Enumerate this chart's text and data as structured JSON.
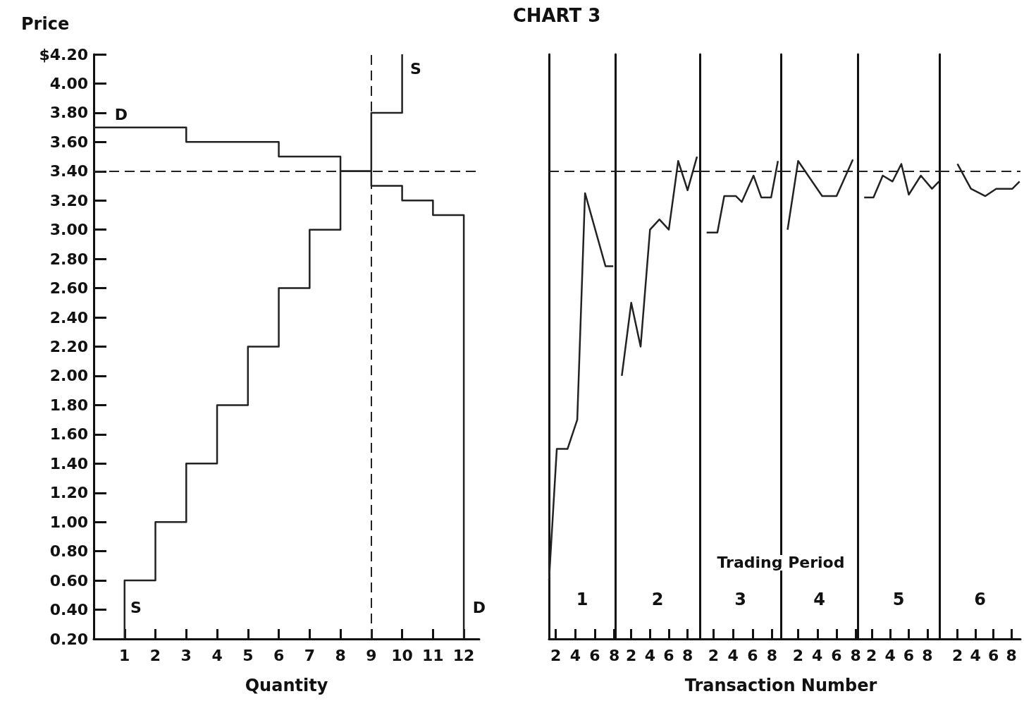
{
  "chart_data": [
    {
      "type": "step",
      "xlabel": "Quantity",
      "ylabel": "Price",
      "xlim": [
        0,
        12.5
      ],
      "xticks": [
        1,
        2,
        3,
        4,
        5,
        6,
        7,
        8,
        9,
        10,
        11,
        12
      ],
      "ylim": [
        0.2,
        4.2
      ],
      "yticks": [
        {
          "value": 0.2,
          "label": "0.20"
        },
        {
          "value": 0.4,
          "label": "0.40"
        },
        {
          "value": 0.6,
          "label": "0.60"
        },
        {
          "value": 0.8,
          "label": "0.80"
        },
        {
          "value": 1.0,
          "label": "1.00"
        },
        {
          "value": 1.2,
          "label": "1.20"
        },
        {
          "value": 1.4,
          "label": "1.40"
        },
        {
          "value": 1.6,
          "label": "1.60"
        },
        {
          "value": 1.8,
          "label": "1.80"
        },
        {
          "value": 2.0,
          "label": "2.00"
        },
        {
          "value": 2.2,
          "label": "2.20"
        },
        {
          "value": 2.4,
          "label": "2.40"
        },
        {
          "value": 2.6,
          "label": "2.60"
        },
        {
          "value": 2.8,
          "label": "2.80"
        },
        {
          "value": 3.0,
          "label": "3.00"
        },
        {
          "value": 3.2,
          "label": "3.20"
        },
        {
          "value": 3.4,
          "label": "3.40"
        },
        {
          "value": 3.6,
          "label": "3.60"
        },
        {
          "value": 3.8,
          "label": "3.80"
        },
        {
          "value": 4.0,
          "label": "4.00"
        },
        {
          "value": 4.2,
          "label": "$4.20"
        }
      ],
      "series": [
        {
          "color": "#222222",
          "x": [
            1,
            2,
            3,
            4,
            5,
            6,
            7,
            8,
            9,
            10,
            10
          ],
          "values": [
            0.2,
            0.6,
            1.0,
            1.4,
            1.8,
            2.2,
            2.6,
            3.0,
            3.4,
            3.8,
            4.2
          ]
        },
        {
          "color": "#222222",
          "x": [
            0,
            3,
            6,
            8,
            9,
            10,
            11,
            12,
            12
          ],
          "values": [
            3.7,
            3.7,
            3.6,
            3.5,
            3.4,
            3.3,
            3.2,
            3.1,
            0.2
          ]
        }
      ],
      "ref_lines": [
        {
          "axis": "y",
          "value": 3.4,
          "line_style": "dashed",
          "color": "#222222"
        },
        {
          "axis": "x",
          "value": 9,
          "line_style": "dashed",
          "color": "#222222"
        }
      ],
      "annotations": [
        "D",
        "S",
        "S",
        "D"
      ],
      "marker": "none",
      "line_style": "solid"
    },
    {
      "type": "line",
      "title": "CHART 3",
      "tick_labels": "x",
      "xlim": [
        1.3,
        8.1
      ],
      "xticks": [
        2,
        4,
        6,
        8
      ],
      "ylim": [
        0.2,
        4.2
      ],
      "series": [
        {
          "color": "#222222",
          "x": [
            1.3,
            2.1,
            3.2,
            4.2,
            5.0,
            7.1,
            7.9
          ],
          "values": [
            0.6,
            1.5,
            1.5,
            1.7,
            3.25,
            2.75,
            2.75
          ]
        }
      ],
      "ref_lines": [
        {
          "axis": "y",
          "value": 3.4,
          "line_style": "dashed",
          "color": "#222222"
        }
      ],
      "annotations": [
        "1"
      ],
      "marker": "none",
      "line_style": "solid"
    },
    {
      "type": "line",
      "tick_labels": "x",
      "xlim": [
        0.3,
        9.3
      ],
      "xticks": [
        2,
        4,
        6,
        8
      ],
      "ylim": [
        0.2,
        4.2
      ],
      "series": [
        {
          "color": "#222222",
          "x": [
            1,
            2,
            3,
            4,
            5,
            6,
            7,
            8,
            9
          ],
          "values": [
            2.0,
            2.5,
            2.2,
            3.0,
            3.07,
            3.0,
            3.47,
            3.27,
            3.5
          ]
        }
      ],
      "ref_lines": [
        {
          "axis": "y",
          "value": 3.4,
          "line_style": "dashed",
          "color": "#222222"
        }
      ],
      "annotations": [
        "2"
      ],
      "marker": "none",
      "line_style": "solid"
    },
    {
      "type": "line",
      "tick_labels": "x",
      "xlabel": "Transaction Number",
      "xlim": [
        0.6,
        8.9
      ],
      "xticks": [
        2,
        4,
        6,
        8
      ],
      "ylim": [
        0.2,
        4.2
      ],
      "series": [
        {
          "color": "#222222",
          "x": [
            1.3,
            2.4,
            3.1,
            4.3,
            4.9,
            6.1,
            6.9,
            7.9,
            8.6
          ],
          "values": [
            2.98,
            2.98,
            3.23,
            3.23,
            3.19,
            3.37,
            3.22,
            3.22,
            3.47
          ]
        }
      ],
      "ref_lines": [
        {
          "axis": "y",
          "value": 3.4,
          "line_style": "dashed",
          "color": "#222222"
        }
      ],
      "annotations": [
        "Trading Period",
        "3"
      ],
      "marker": "none",
      "line_style": "solid"
    },
    {
      "type": "line",
      "tick_labels": "x",
      "xlim": [
        0.2,
        8.2
      ],
      "xticks": [
        2,
        4,
        6,
        8
      ],
      "ylim": [
        0.2,
        4.2
      ],
      "series": [
        {
          "color": "#222222",
          "x": [
            0.9,
            2.0,
            4.5,
            6.0,
            7.7
          ],
          "values": [
            3.0,
            3.47,
            3.23,
            3.23,
            3.48
          ]
        }
      ],
      "ref_lines": [
        {
          "axis": "y",
          "value": 3.4,
          "line_style": "dashed",
          "color": "#222222"
        }
      ],
      "annotations": [
        "4"
      ],
      "marker": "none",
      "line_style": "solid"
    },
    {
      "type": "line",
      "tick_labels": "x",
      "xlim": [
        0.5,
        9.3
      ],
      "xticks": [
        2,
        4,
        6,
        8
      ],
      "ylim": [
        0.2,
        4.2
      ],
      "series": [
        {
          "color": "#222222",
          "x": [
            1.2,
            2.2,
            3.2,
            4.25,
            5.2,
            6.0,
            7.3,
            8.5,
            9.25
          ],
          "values": [
            3.22,
            3.22,
            3.37,
            3.33,
            3.45,
            3.24,
            3.37,
            3.28,
            3.33
          ]
        }
      ],
      "ref_lines": [
        {
          "axis": "y",
          "value": 3.4,
          "line_style": "dashed",
          "color": "#222222"
        }
      ],
      "annotations": [
        "5"
      ],
      "marker": "none",
      "line_style": "solid"
    },
    {
      "type": "line",
      "tick_labels": "x",
      "xlim": [
        0,
        9
      ],
      "xticks": [
        2,
        4,
        6,
        8
      ],
      "ylim": [
        0.2,
        4.2
      ],
      "series": [
        {
          "color": "#222222",
          "x": [
            2.0,
            3.5,
            5.1,
            6.3,
            8.1,
            8.9
          ],
          "values": [
            3.45,
            3.28,
            3.23,
            3.28,
            3.28,
            3.33
          ]
        }
      ],
      "ref_lines": [
        {
          "axis": "y",
          "value": 3.4,
          "line_style": "dashed",
          "color": "#222222"
        }
      ],
      "annotations": [
        "6"
      ],
      "marker": "none",
      "line_style": "solid"
    }
  ]
}
